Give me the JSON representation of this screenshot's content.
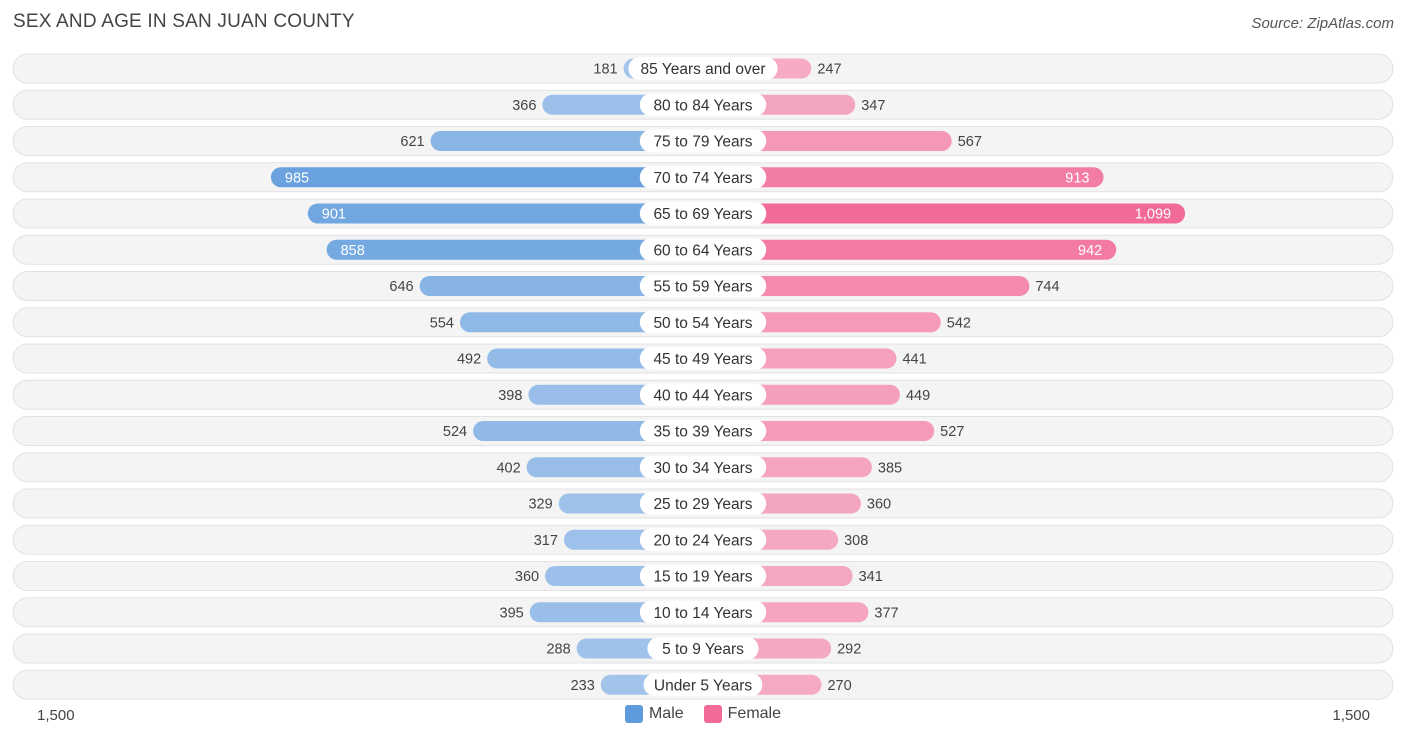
{
  "header": {
    "title": "SEX AND AGE IN SAN JUAN COUNTY",
    "source": "Source: ZipAtlas.com"
  },
  "colors": {
    "male_light": "#a9c8ec",
    "male_dark": "#5e9bdc",
    "female_light": "#f6b3c8",
    "female_dark": "#f26b96",
    "row_bg": "#efefef"
  },
  "legend": {
    "male_label": "Male",
    "female_label": "Female"
  },
  "axis": {
    "left_label": "1,500",
    "right_label": "1,500"
  },
  "chart_data": {
    "type": "bar",
    "orientation": "horizontal-diverging",
    "xlim": [
      -1500,
      1500
    ],
    "categories": [
      "85 Years and over",
      "80 to 84 Years",
      "75 to 79 Years",
      "70 to 74 Years",
      "65 to 69 Years",
      "60 to 64 Years",
      "55 to 59 Years",
      "50 to 54 Years",
      "45 to 49 Years",
      "40 to 44 Years",
      "35 to 39 Years",
      "30 to 34 Years",
      "25 to 29 Years",
      "20 to 24 Years",
      "15 to 19 Years",
      "10 to 14 Years",
      "5 to 9 Years",
      "Under 5 Years"
    ],
    "series": [
      {
        "name": "Male",
        "values": [
          181,
          366,
          621,
          985,
          901,
          858,
          646,
          554,
          492,
          398,
          524,
          402,
          329,
          317,
          360,
          395,
          288,
          233
        ],
        "labels": [
          "181",
          "366",
          "621",
          "985",
          "901",
          "858",
          "646",
          "554",
          "492",
          "398",
          "524",
          "402",
          "329",
          "317",
          "360",
          "395",
          "288",
          "233"
        ]
      },
      {
        "name": "Female",
        "values": [
          247,
          347,
          567,
          913,
          1099,
          942,
          744,
          542,
          441,
          449,
          527,
          385,
          360,
          308,
          341,
          377,
          292,
          270
        ],
        "labels": [
          "247",
          "347",
          "567",
          "913",
          "1,099",
          "942",
          "744",
          "542",
          "441",
          "449",
          "527",
          "385",
          "360",
          "308",
          "341",
          "377",
          "292",
          "270"
        ]
      }
    ]
  }
}
